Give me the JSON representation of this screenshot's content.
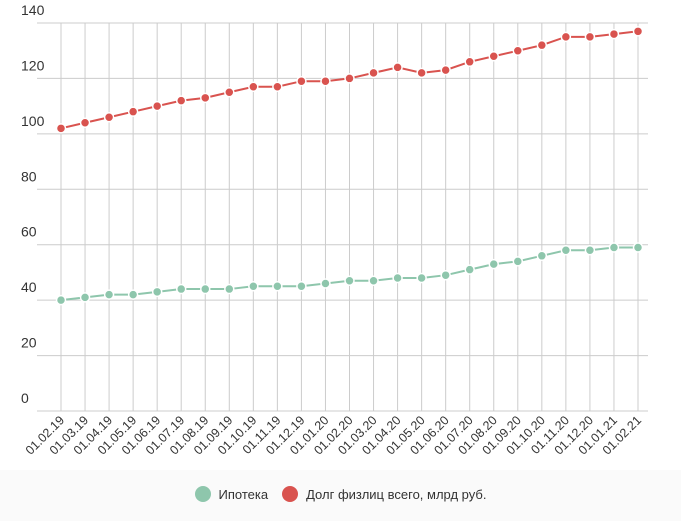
{
  "chart_data": {
    "type": "line",
    "categories": [
      "01.02.19",
      "01.03.19",
      "01.04.19",
      "01.05.19",
      "01.06.19",
      "01.07.19",
      "01.08.19",
      "01.09.19",
      "01.10.19",
      "01.11.19",
      "01.12.19",
      "01.01.20",
      "01.02.20",
      "01.03.20",
      "01.04.20",
      "01.05.20",
      "01.06.20",
      "01.07.20",
      "01.08.20",
      "01.09.20",
      "01.10.20",
      "01.11.20",
      "01.12.20",
      "01.01.21",
      "01.02.21"
    ],
    "series": [
      {
        "name": "Ипотека",
        "color": "#8ec6ac",
        "values": [
          40,
          41,
          42,
          42,
          43,
          44,
          44,
          44,
          45,
          45,
          45,
          46,
          47,
          47,
          48,
          48,
          49,
          51,
          53,
          54,
          56,
          58,
          58,
          59,
          59
        ]
      },
      {
        "name": "Долг физлиц всего, млрд руб.",
        "color": "#d9534f",
        "values": [
          102,
          104,
          106,
          108,
          110,
          112,
          113,
          115,
          117,
          117,
          119,
          119,
          120,
          122,
          124,
          122,
          123,
          126,
          128,
          130,
          132,
          135,
          135,
          136,
          137
        ]
      }
    ],
    "yticks": [
      0,
      20,
      40,
      60,
      80,
      100,
      120,
      140
    ],
    "ylim": [
      0,
      140
    ],
    "grid": true,
    "legend_position": "bottom"
  },
  "colors": {
    "grid": "#cccccc",
    "text": "#333333"
  }
}
